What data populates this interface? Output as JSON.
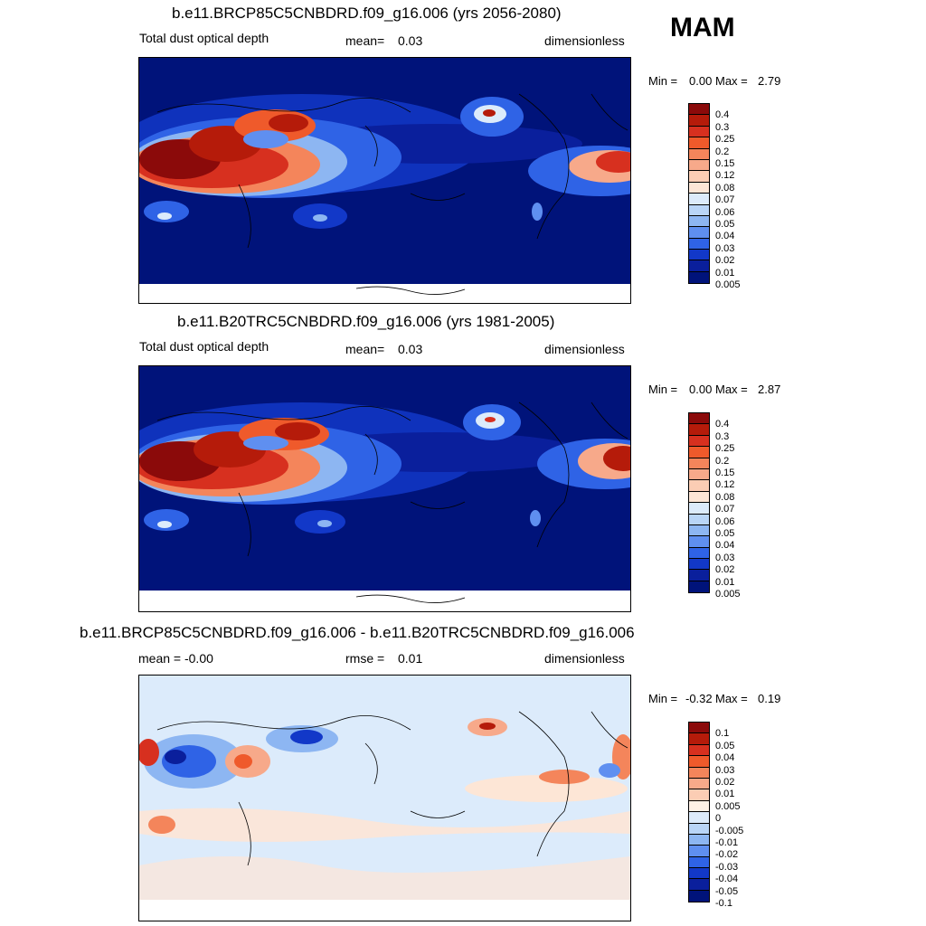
{
  "season": "MAM",
  "panels": [
    {
      "title": "b.e11.BRCP85C5CNBDRD.f09_g16.006 (yrs 2056-2080)",
      "left_label": "Total dust optical depth",
      "stat_label": "mean=",
      "stat_value": "0.03",
      "units": "dimensionless",
      "min_label": "Min =",
      "min_value": "0.00",
      "max_label": "Max =",
      "max_value": "2.79"
    },
    {
      "title": "b.e11.B20TRC5CNBDRD.f09_g16.006 (yrs 1981-2005)",
      "left_label": "Total dust optical depth",
      "stat_label": "mean=",
      "stat_value": "0.03",
      "units": "dimensionless",
      "min_label": "Min =",
      "min_value": "0.00",
      "max_label": "Max =",
      "max_value": "2.87"
    },
    {
      "title": "b.e11.BRCP85C5CNBDRD.f09_g16.006 - b.e11.B20TRC5CNBDRD.f09_g16.006",
      "left_label": "mean =  -0.00",
      "stat_label": "rmse =",
      "stat_value": "0.01",
      "units": "dimensionless",
      "min_label": "Min =",
      "min_value": "-0.32",
      "max_label": "Max =",
      "max_value": "0.19"
    }
  ],
  "colorbar_abs": {
    "labels": [
      "0.4",
      "0.3",
      "0.25",
      "0.2",
      "0.15",
      "0.12",
      "0.08",
      "0.07",
      "0.06",
      "0.05",
      "0.04",
      "0.03",
      "0.02",
      "0.01",
      "0.005"
    ],
    "colors": [
      "#8b0a0a",
      "#b51b0a",
      "#d7301f",
      "#ef5a2b",
      "#f4855b",
      "#f7a98a",
      "#fbcdb4",
      "#fde6d6",
      "#dcebfb",
      "#b9d5f7",
      "#8db6f2",
      "#5f8ff0",
      "#2f63e6",
      "#1238c8",
      "#0a1f9c",
      "#00137a"
    ]
  },
  "colorbar_diff": {
    "labels": [
      "0.1",
      "0.05",
      "0.04",
      "0.03",
      "0.02",
      "0.01",
      "0.005",
      "0",
      "-0.005",
      "-0.01",
      "-0.02",
      "-0.03",
      "-0.04",
      "-0.05",
      "-0.1"
    ],
    "colors": [
      "#8b0a0a",
      "#b51b0a",
      "#d7301f",
      "#ef5a2b",
      "#f4855b",
      "#f7a98a",
      "#fbcdb4",
      "#fef1e6",
      "#dcebfb",
      "#b9d5f7",
      "#8db6f2",
      "#5f8ff0",
      "#2f63e6",
      "#1238c8",
      "#0a1f9c",
      "#00137a"
    ]
  }
}
